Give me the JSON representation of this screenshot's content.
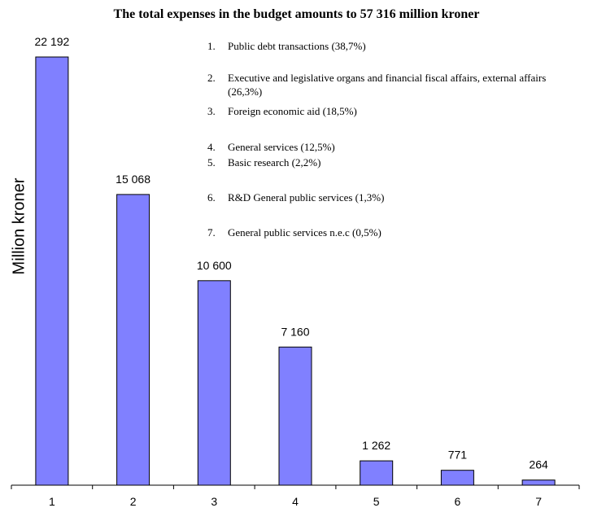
{
  "chart_data": {
    "type": "bar",
    "title": "The total expenses in the budget amounts to 57 316 million kroner",
    "ylabel": "Million kroner",
    "xlabel": "",
    "categories": [
      "1",
      "2",
      "3",
      "4",
      "5",
      "6",
      "7"
    ],
    "values": [
      22192,
      15068,
      10600,
      7160,
      1262,
      771,
      264
    ],
    "value_labels": [
      "22 192",
      "15 068",
      "10 600",
      "7 160",
      "1 262",
      "771",
      "264"
    ],
    "ylim": [
      0,
      22192
    ],
    "grid": false,
    "bar_color": "#8080ff",
    "legend": [
      {
        "num": "1.",
        "text": "Public debt transactions (38,7%)"
      },
      {
        "num": "2.",
        "text": "Executive and legislative organs and financial fiscal affairs, external affairs (26,3%)"
      },
      {
        "num": "3.",
        "text": "Foreign economic aid (18,5%)"
      },
      {
        "num": "4.",
        "text": "General services (12,5%)"
      },
      {
        "num": "5.",
        "text": "Basic research (2,2%)"
      },
      {
        "num": "6.",
        "text": "R&D General public services (1,3%)"
      },
      {
        "num": "7.",
        "text": "General public services n.e.c (0,5%)"
      }
    ]
  }
}
